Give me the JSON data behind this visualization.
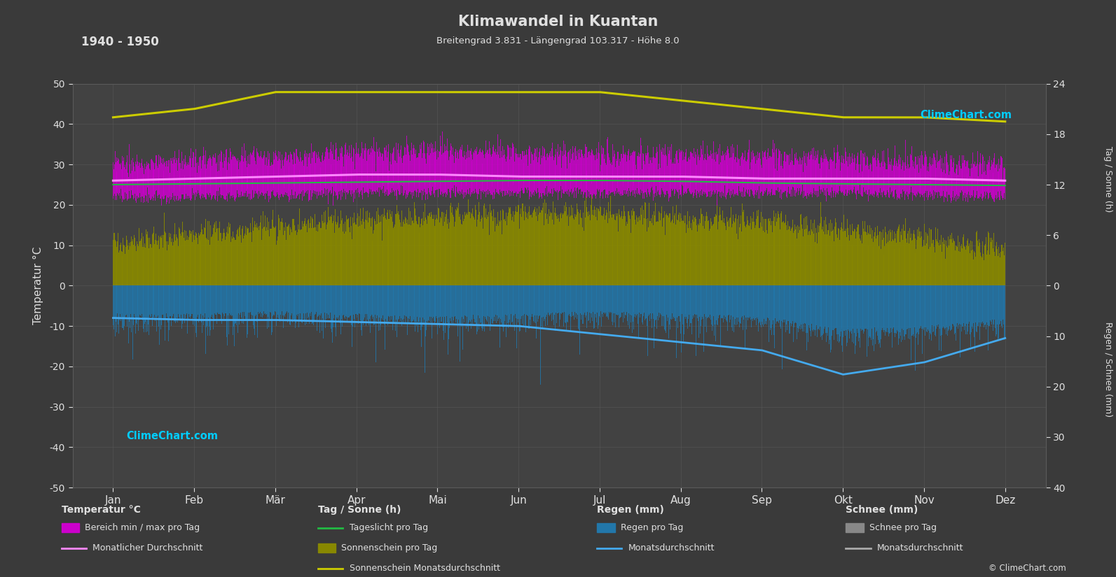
{
  "title": "Klimawandel in Kuantan",
  "subtitle": "Breitengrad 3.831 - Längengrad 103.317 - Höhe 8.0",
  "period": "1940 - 1950",
  "bg_color": "#3a3a3a",
  "plot_bg_color": "#424242",
  "grid_color": "#5a5a5a",
  "text_color": "#e0e0e0",
  "months": [
    "Jan",
    "Feb",
    "Mär",
    "Apr",
    "Mai",
    "Jun",
    "Jul",
    "Aug",
    "Sep",
    "Okt",
    "Nov",
    "Dez"
  ],
  "temp_ylim": [
    -50,
    50
  ],
  "temp_min_monthly": [
    22.0,
    22.0,
    22.5,
    23.0,
    23.0,
    23.0,
    23.0,
    23.0,
    23.0,
    23.0,
    22.5,
    22.0
  ],
  "temp_max_monthly": [
    30.0,
    31.0,
    32.0,
    33.0,
    33.5,
    33.0,
    32.5,
    32.5,
    32.0,
    31.5,
    30.5,
    30.0
  ],
  "temp_avg_monthly": [
    26.0,
    26.5,
    27.0,
    27.5,
    27.5,
    27.0,
    27.0,
    27.0,
    26.5,
    26.5,
    26.5,
    26.0
  ],
  "sunshine_monthly": [
    5.0,
    6.0,
    7.0,
    7.5,
    8.0,
    8.5,
    8.5,
    8.0,
    7.5,
    6.5,
    5.5,
    4.5
  ],
  "sunshine_avg_monthly": [
    20.0,
    21.0,
    23.0,
    23.0,
    23.0,
    23.0,
    23.0,
    22.0,
    21.0,
    20.0,
    20.0,
    19.5
  ],
  "daylight_monthly": [
    12.0,
    12.1,
    12.2,
    12.3,
    12.4,
    12.5,
    12.5,
    12.4,
    12.2,
    12.1,
    12.0,
    11.9
  ],
  "rain_daily_avg": [
    5.5,
    5.5,
    5.0,
    5.5,
    6.0,
    5.5,
    5.0,
    5.5,
    6.0,
    8.5,
    8.0,
    6.5
  ],
  "rain_monthly_avg_temp": [
    -8.0,
    -8.5,
    -8.5,
    -9.0,
    -9.5,
    -10.0,
    -12.0,
    -14.0,
    -16.0,
    -22.0,
    -19.0,
    -13.0
  ],
  "sun_scale": 2.0833,
  "rain_scale": -1.25,
  "colors": {
    "temp_magenta": "#cc00cc",
    "temp_avg_line": "#ff88ff",
    "sunshine_olive": "#888800",
    "sunshine_avg_line": "#cccc00",
    "daylight_green": "#22bb44",
    "rain_blue": "#2277aa",
    "rain_avg_line": "#44aaee",
    "snow_gray": "#888888",
    "snow_avg_line": "#aaaaaa",
    "climechart_cyan": "#00ccff"
  },
  "right_sun_ticks_h": [
    0,
    6,
    12,
    18,
    24
  ],
  "right_rain_ticks_mm": [
    0,
    10,
    20,
    30,
    40
  ],
  "left_yticks": [
    -50,
    -40,
    -30,
    -20,
    -10,
    0,
    10,
    20,
    30,
    40,
    50
  ]
}
